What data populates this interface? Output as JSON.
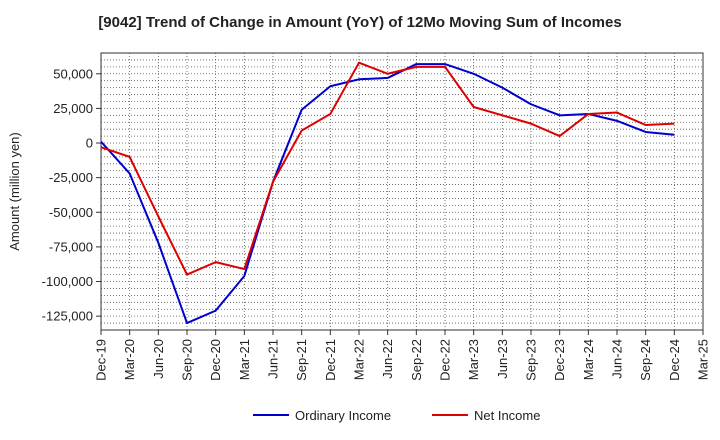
{
  "chart_data": {
    "type": "line",
    "title": "[9042]  Trend of Change in Amount (YoY) of 12Mo Moving Sum of Incomes",
    "xlabel": "",
    "ylabel": "Amount (million yen)",
    "categories": [
      "Dec-19",
      "Mar-20",
      "Jun-20",
      "Sep-20",
      "Dec-20",
      "Mar-21",
      "Jun-21",
      "Sep-21",
      "Dec-21",
      "Mar-22",
      "Jun-22",
      "Sep-22",
      "Dec-22",
      "Mar-23",
      "Jun-23",
      "Sep-23",
      "Dec-23",
      "Mar-24",
      "Jun-24",
      "Sep-24",
      "Dec-24",
      "Mar-25"
    ],
    "ylim": [
      -135000,
      65000
    ],
    "yticks": [
      -125000,
      -100000,
      -75000,
      -50000,
      -25000,
      0,
      25000,
      50000
    ],
    "ytick_labels": [
      "-125,000",
      "-100,000",
      "-75,000",
      "-50,000",
      "-25,000",
      "0",
      "25,000",
      "50,000"
    ],
    "grid": true,
    "legend_position": "bottom",
    "series": [
      {
        "name": "Ordinary Income",
        "color": "#0000cc",
        "values": [
          1000,
          -22000,
          -72000,
          -130000,
          -121000,
          -96000,
          -28000,
          24000,
          41000,
          46000,
          47000,
          57000,
          57000,
          50000,
          40000,
          28000,
          20000,
          21000,
          16000,
          8000,
          6000,
          null
        ]
      },
      {
        "name": "Net Income",
        "color": "#dd0000",
        "values": [
          -3000,
          -10000,
          -53000,
          -95000,
          -86000,
          -91000,
          -28000,
          9000,
          21000,
          58000,
          50000,
          55000,
          55000,
          26000,
          20000,
          14000,
          5000,
          21000,
          22000,
          13000,
          14000,
          null
        ]
      }
    ]
  }
}
